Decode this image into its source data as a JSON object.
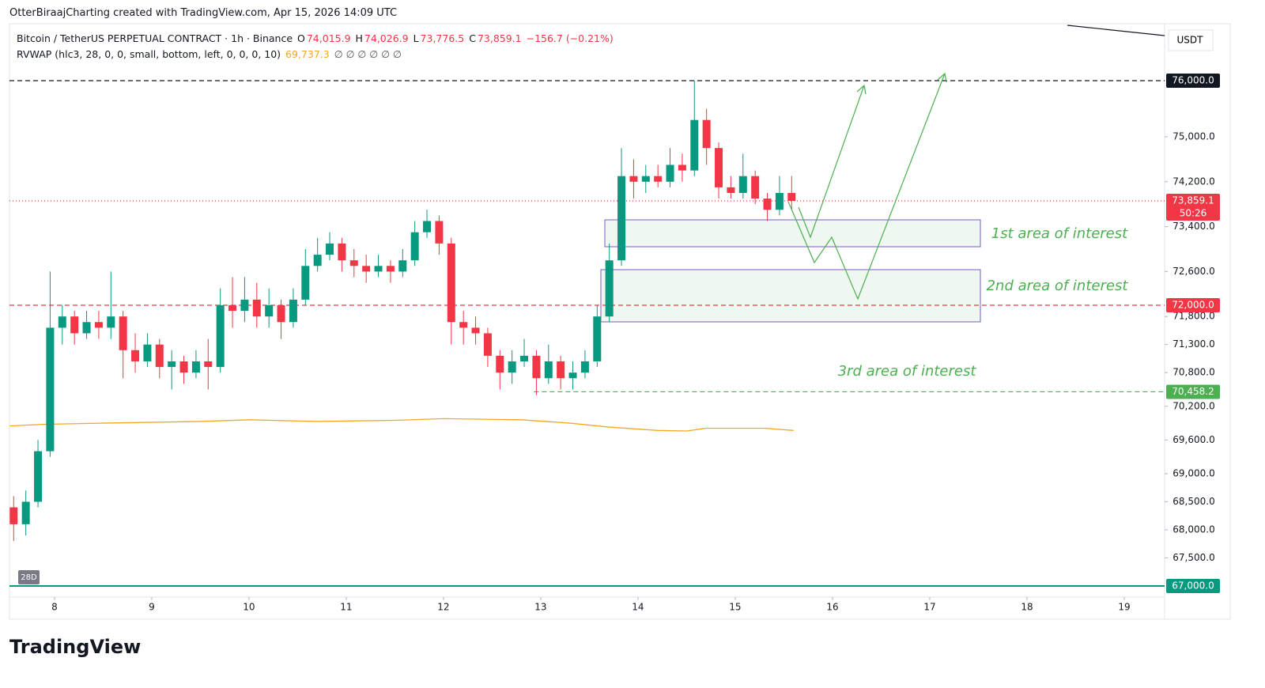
{
  "header": "OtterBiraajCharting created with TradingView.com, Apr 15, 2026 14:09 UTC",
  "legend": {
    "symbol": "Bitcoin / TetherUS PERPETUAL CONTRACT · 1h · Binance",
    "ohlc": [
      {
        "key": "O",
        "value": "74,015.9"
      },
      {
        "key": "H",
        "value": "74,026.9"
      },
      {
        "key": "L",
        "value": "73,776.5"
      },
      {
        "key": "C",
        "value": "73,859.1"
      }
    ],
    "change": "−156.7 (−0.21%)",
    "indicator": "RVWAP (hlc3, 28, 0, 0, small, bottom, left, 0, 0, 0, 10)",
    "indicator_value": "69,737.3",
    "indicator_extra": "∅ ∅ ∅ ∅ ∅ ∅"
  },
  "currency": "USDT",
  "range_badge": "28D",
  "footer": "TradingView",
  "chart_data": {
    "type": "candlestick",
    "up_color": "#089981",
    "down_color": "#f23645",
    "x": [
      7.58,
      7.705,
      7.83,
      7.955,
      8.08,
      8.205,
      8.33,
      8.455,
      8.58,
      8.705,
      8.83,
      8.955,
      9.08,
      9.205,
      9.33,
      9.455,
      9.58,
      9.705,
      9.83,
      9.955,
      10.08,
      10.205,
      10.33,
      10.455,
      10.58,
      10.705,
      10.83,
      10.955,
      11.08,
      11.205,
      11.33,
      11.455,
      11.58,
      11.705,
      11.83,
      11.955,
      12.08,
      12.205,
      12.33,
      12.455,
      12.58,
      12.705,
      12.83,
      12.955,
      13.08,
      13.205,
      13.33,
      13.455,
      13.58,
      13.705,
      13.83,
      13.955,
      14.08,
      14.205,
      14.33,
      14.455,
      14.58,
      14.705,
      14.83,
      14.955,
      15.08,
      15.205,
      15.33,
      15.455,
      15.58
    ],
    "open": [
      68400,
      68100,
      68500,
      69400,
      71600,
      71800,
      71500,
      71700,
      71600,
      71800,
      71200,
      71000,
      71300,
      70900,
      71000,
      70800,
      71000,
      70900,
      72000,
      71900,
      72100,
      71800,
      72000,
      71700,
      72100,
      72700,
      72900,
      73100,
      72800,
      72700,
      72600,
      72700,
      72600,
      72800,
      73300,
      73500,
      73100,
      71700,
      71600,
      71500,
      71100,
      70800,
      71000,
      71100,
      70700,
      71000,
      70700,
      70800,
      71000,
      71800,
      72800,
      74300,
      74200,
      74300,
      74200,
      74500,
      74400,
      75300,
      74800,
      74100,
      74000,
      74300,
      73900,
      73700,
      74000
    ],
    "high": [
      68600,
      68700,
      69600,
      72600,
      72000,
      71900,
      71900,
      71900,
      72600,
      71900,
      71500,
      71500,
      71400,
      71200,
      71100,
      71200,
      71400,
      72300,
      72500,
      72500,
      72400,
      72300,
      72100,
      72300,
      73000,
      73200,
      73300,
      73200,
      73000,
      72900,
      72900,
      72800,
      73000,
      73500,
      73700,
      73600,
      73200,
      71900,
      71800,
      71600,
      71200,
      71200,
      71400,
      71200,
      71300,
      71100,
      71000,
      71200,
      72000,
      73100,
      74800,
      74600,
      74500,
      74500,
      74800,
      74700,
      76000,
      75500,
      74900,
      74300,
      74700,
      74400,
      74000,
      74300,
      74300
    ],
    "low": [
      67800,
      67900,
      68400,
      69300,
      71300,
      71300,
      71400,
      71400,
      71400,
      70700,
      70800,
      70900,
      70700,
      70500,
      70600,
      70700,
      70500,
      70800,
      71600,
      71700,
      71600,
      71600,
      71400,
      71600,
      72000,
      72600,
      72800,
      72600,
      72500,
      72400,
      72500,
      72400,
      72500,
      72700,
      73200,
      72900,
      71300,
      71300,
      71300,
      70900,
      70500,
      70600,
      70900,
      70400,
      70600,
      70500,
      70500,
      70700,
      70900,
      71700,
      72700,
      73900,
      74000,
      74100,
      74100,
      74200,
      74300,
      74500,
      73900,
      73900,
      73900,
      73800,
      73500,
      73600,
      73700
    ],
    "close": [
      68100,
      68500,
      69400,
      71600,
      71800,
      71500,
      71700,
      71600,
      71800,
      71200,
      71000,
      71300,
      70900,
      71000,
      70800,
      71000,
      70900,
      72000,
      71900,
      72100,
      71800,
      72000,
      71700,
      72100,
      72700,
      72900,
      73100,
      72800,
      72700,
      72600,
      72700,
      72600,
      72800,
      73300,
      73500,
      73100,
      71700,
      71600,
      71500,
      71100,
      70800,
      71000,
      71100,
      70700,
      71000,
      70700,
      70800,
      71000,
      71800,
      72800,
      74300,
      74200,
      74300,
      74200,
      74500,
      74400,
      75300,
      74800,
      74100,
      74000,
      74300,
      73900,
      73700,
      74000,
      73859.1
    ],
    "vwap": {
      "color": "#f5a623",
      "x": [
        7.54,
        7.9,
        8.5,
        9.5,
        10,
        10.7,
        11.5,
        12,
        12.8,
        13.3,
        13.7,
        14.2,
        14.5,
        14.7,
        15.3,
        15.6
      ],
      "values": [
        69850,
        69880,
        69900,
        69930,
        69960,
        69930,
        69950,
        69980,
        69960,
        69900,
        69830,
        69770,
        69760,
        69810,
        69810,
        69770
      ]
    },
    "levels": [
      {
        "value": 76000,
        "label": "76,000.0",
        "color": "#131722",
        "style": "dashed",
        "start": 7.537
      },
      {
        "value": 73859.1,
        "label": "73,859.1",
        "sub": "50:26",
        "color": "#f23645",
        "style": "dotted",
        "start": 7.537
      },
      {
        "value": 72000,
        "label": "72,000.0",
        "color": "#f23645",
        "style": "dashed",
        "start": 7.537
      },
      {
        "value": 70458.2,
        "label": "70,458.2",
        "color": "#4caf50",
        "style": "dashed",
        "start": 12.93
      },
      {
        "value": 67000,
        "label": "67,000.0",
        "color": "#089981",
        "style": "solid",
        "start": 7.537
      }
    ],
    "annotations": [
      "1st area of interest",
      "2nd area of interest",
      "3rd area of interest"
    ],
    "xlim": [
      7.537,
      19.415
    ],
    "xticks": [
      8,
      9,
      10,
      11,
      12,
      13,
      14,
      15,
      16,
      17,
      18,
      19
    ],
    "ylim": [
      66408,
      77014
    ],
    "yticks": [
      {
        "value": 75000,
        "label": "75,000.0"
      },
      {
        "value": 74200,
        "label": "74,200.0"
      },
      {
        "value": 73400,
        "label": "73,400.0"
      },
      {
        "value": 72600,
        "label": "72,600.0"
      },
      {
        "value": 71800,
        "label": "71,800.0"
      },
      {
        "value": 71300,
        "label": "71,300.0"
      },
      {
        "value": 70800,
        "label": "70,800.0"
      },
      {
        "value": 70200,
        "label": "70,200.0"
      },
      {
        "value": 69600,
        "label": "69,600.0"
      },
      {
        "value": 69000,
        "label": "69,000.0"
      },
      {
        "value": 68500,
        "label": "68,500.0"
      },
      {
        "value": 68000,
        "label": "68,000.0"
      },
      {
        "value": 67500,
        "label": "67,500.0"
      }
    ]
  }
}
